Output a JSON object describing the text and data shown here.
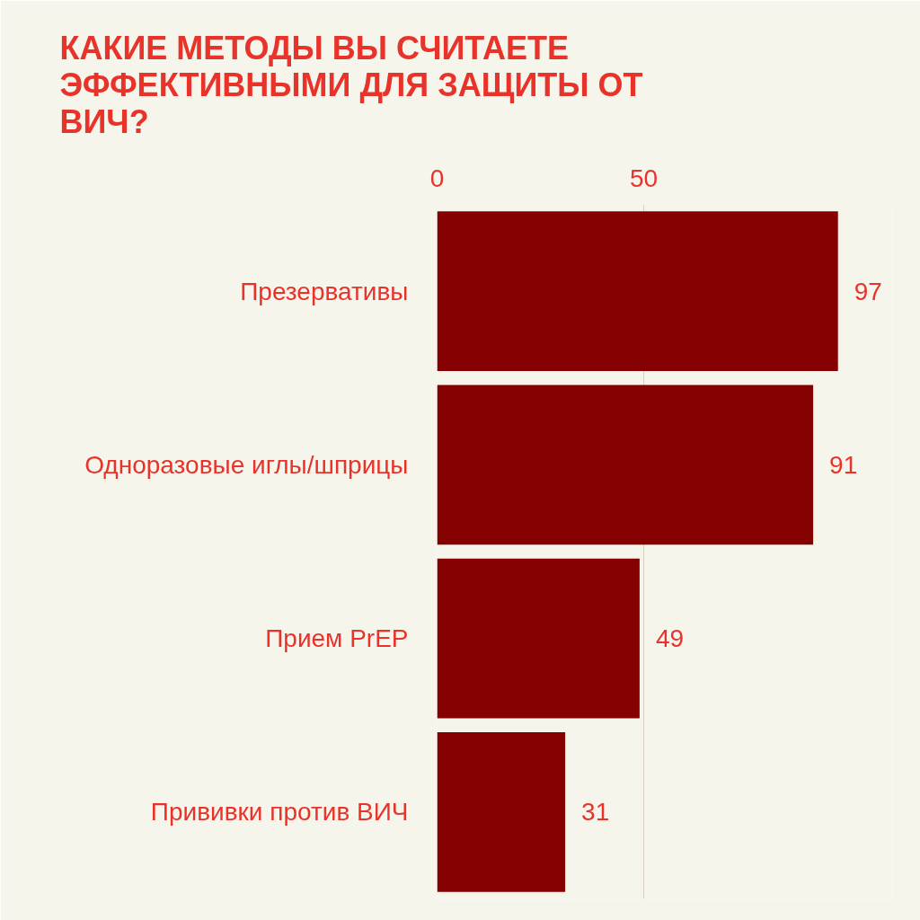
{
  "chart_data": {
    "type": "bar",
    "orientation": "horizontal",
    "title": "КАКИЕ МЕТОДЫ ВЫ СЧИТАЕТЕ ЭФФЕКТИВНЫМИ ДЛЯ ЗАЩИТЫ ОТ ВИЧ?",
    "categories": [
      "Презервативы",
      "Одноразовые иглы/шприцы",
      "Прием PrEP",
      "Прививки против ВИЧ"
    ],
    "values": [
      97,
      91,
      49,
      31
    ],
    "color": "#850000",
    "xlim": [
      0,
      110
    ],
    "xticks": [
      0,
      50
    ],
    "grid": "x",
    "data_labels": true
  }
}
